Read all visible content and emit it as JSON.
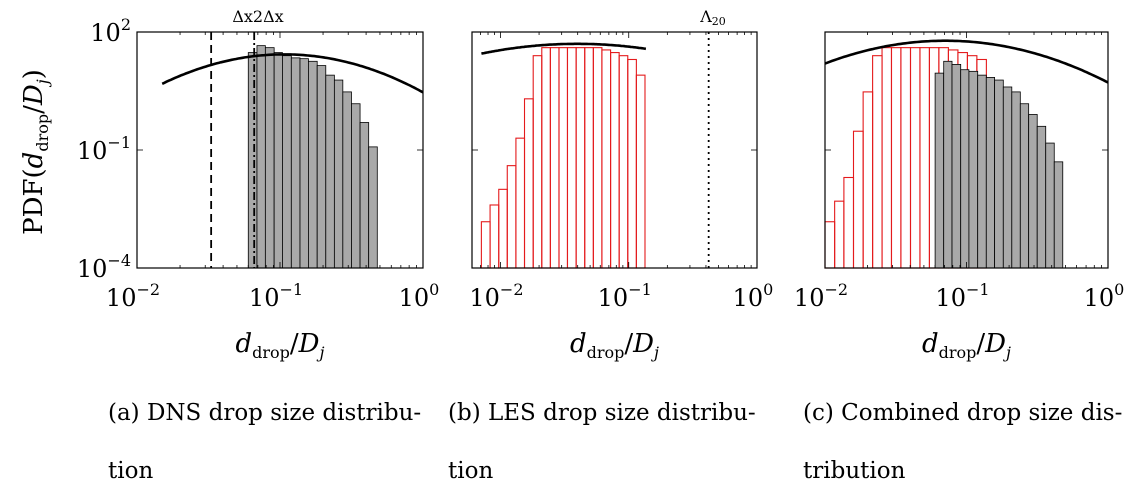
{
  "chart_data": [
    {
      "type": "bar",
      "xscale": "log",
      "yscale": "log",
      "xlim": [
        0.01,
        1
      ],
      "ylim": [
        0.0001,
        100
      ],
      "xlabel": "d_drop/D_j",
      "ylabel": "PDF(d_drop/D_j)",
      "xticks": [
        "10^-2",
        "10^-1",
        "10^0"
      ],
      "yticks": [
        "10^-4",
        "10^-1",
        "10^2"
      ],
      "annotations": [
        "Δx",
        "2Δx"
      ],
      "vlines": [
        0.033,
        0.066
      ],
      "series": [
        {
          "kind": "hist",
          "color": "#a9a9a9",
          "bin_edges": [
            0.06,
            0.069,
            0.079,
            0.091,
            0.104,
            0.12,
            0.138,
            0.158,
            0.182,
            0.209,
            0.24,
            0.275,
            0.316,
            0.363,
            0.417,
            0.479
          ],
          "values": [
            30,
            45,
            40,
            30,
            25,
            22,
            21,
            18,
            14,
            8,
            6,
            3,
            1.5,
            0.5,
            0.12
          ]
        },
        {
          "kind": "fit",
          "color": "#000000",
          "x_range": [
            0.015,
            1
          ],
          "mu_log10": -0.97,
          "sigma_log10": 0.46,
          "scale": 27
        }
      ]
    },
    {
      "type": "bar",
      "xscale": "log",
      "yscale": "log",
      "xlim": [
        0.006,
        1
      ],
      "ylim": [
        0.0001,
        100
      ],
      "xlabel": "d_drop/D_j",
      "xticks": [
        "10^-2",
        "10^-1",
        "10^0"
      ],
      "annotations": [
        "Λ20"
      ],
      "vlines": [
        0.42
      ],
      "series": [
        {
          "kind": "hist",
          "color": "#e41a1c",
          "bin_edges": [
            0.0071,
            0.0083,
            0.0097,
            0.0113,
            0.0132,
            0.0154,
            0.018,
            0.021,
            0.0245,
            0.0286,
            0.0333,
            0.0389,
            0.0454,
            0.053,
            0.0618,
            0.0722,
            0.0842,
            0.0983,
            0.1147,
            0.1339
          ],
          "values": [
            0.0015,
            0.004,
            0.01,
            0.04,
            0.2,
            2,
            25,
            40,
            40,
            40,
            40,
            40,
            40,
            40,
            35,
            30,
            25,
            20,
            8
          ]
        },
        {
          "kind": "fit",
          "color": "#000000",
          "x_range": [
            0.0071,
            0.136
          ],
          "mu_log10": -1.4,
          "sigma_log10": 0.7,
          "scale": 50
        }
      ]
    },
    {
      "type": "bar",
      "xscale": "log",
      "yscale": "log",
      "xlim": [
        0.01,
        1
      ],
      "ylim": [
        0.0001,
        100
      ],
      "xlabel": "d_drop/D_j",
      "xticks": [
        "10^-2",
        "10^-1",
        "10^0"
      ],
      "series": [
        {
          "kind": "hist",
          "color": "#e41a1c",
          "bin_edges": [
            0.01,
            0.0117,
            0.0136,
            0.0159,
            0.0186,
            0.0217,
            0.0253,
            0.0295,
            0.0344,
            0.0402,
            0.0469,
            0.0547,
            0.0638,
            0.0745,
            0.087,
            0.1015,
            0.1184,
            0.1382
          ],
          "values": [
            0.0015,
            0.005,
            0.02,
            0.3,
            3,
            25,
            40,
            40,
            40,
            40,
            40,
            40,
            40,
            35,
            30,
            25,
            20
          ]
        },
        {
          "kind": "hist",
          "color": "#a9a9a9",
          "bin_edges": [
            0.06,
            0.069,
            0.079,
            0.091,
            0.104,
            0.12,
            0.138,
            0.158,
            0.182,
            0.209,
            0.24,
            0.275,
            0.316,
            0.363,
            0.417,
            0.479
          ],
          "values": [
            9,
            18,
            15,
            11,
            10,
            8,
            7,
            6,
            4,
            3,
            1.5,
            0.8,
            0.4,
            0.15,
            0.05
          ]
        },
        {
          "kind": "fit",
          "color": "#000000",
          "x_range": [
            0.01,
            1
          ],
          "mu_log10": -1.15,
          "sigma_log10": 0.52,
          "scale": 60
        }
      ]
    }
  ],
  "captions": [
    {
      "line1": "(a) DNS drop size distribu-",
      "line2": "tion"
    },
    {
      "line1": "(b) LES drop size distribu-",
      "line2": "tion"
    },
    {
      "line1": "(c) Combined drop size dis-",
      "line2": "tribution"
    }
  ]
}
